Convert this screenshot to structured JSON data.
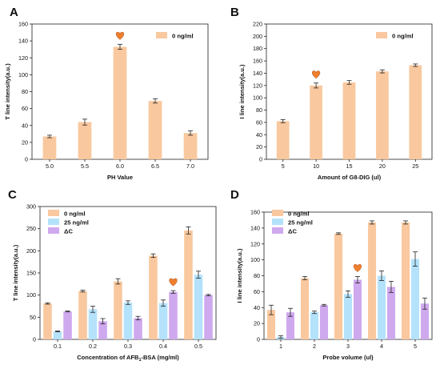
{
  "colors": {
    "zero": "#f9c89e",
    "c25": "#b4e2fa",
    "delta": "#cfa9ee",
    "heart": "#f07f2d",
    "err": "#222222"
  },
  "chart_data": [
    {
      "panel": "A",
      "type": "bar",
      "categories": [
        "5.0",
        "5.5",
        "6.0",
        "6.5",
        "7.0"
      ],
      "xlabel": "PH Value",
      "ylabel": "T line intensity(a.u.)",
      "ylim": [
        0,
        160
      ],
      "yticks": [
        0,
        20,
        40,
        60,
        80,
        100,
        120,
        140,
        160
      ],
      "series": [
        {
          "name": "0 ng/ml",
          "color_key": "zero",
          "values": [
            27,
            44,
            133,
            69,
            31
          ],
          "errors": [
            1.5,
            3.5,
            3,
            2.5,
            2.5
          ]
        }
      ],
      "marker": {
        "series": 0,
        "index": 2,
        "icon": "heart-icon"
      }
    },
    {
      "panel": "B",
      "type": "bar",
      "categories": [
        "5",
        "10",
        "15",
        "20",
        "25"
      ],
      "xlabel": "Amount of G8-DIG (ul)",
      "ylabel": "I line intensity(a.u.)",
      "ylim": [
        0,
        220
      ],
      "yticks": [
        0,
        20,
        40,
        60,
        80,
        100,
        120,
        140,
        160,
        180,
        200,
        220
      ],
      "series": [
        {
          "name": "0 ng/ml",
          "color_key": "zero",
          "values": [
            62,
            120,
            125,
            143,
            153
          ],
          "errors": [
            2.5,
            4,
            3,
            2.5,
            2
          ]
        }
      ],
      "marker": {
        "series": 0,
        "index": 1,
        "icon": "heart-icon"
      }
    },
    {
      "panel": "C",
      "type": "bar",
      "categories": [
        "0.1",
        "0.2",
        "0.3",
        "0.4",
        "0.5"
      ],
      "xlabel": "Concentration of AFB",
      "xlabel_sub": "1",
      "xlabel_tail": "-BSA (mg/ml)",
      "ylabel": "T line intensity(a.u.)",
      "ylim": [
        0,
        300
      ],
      "yticks": [
        0,
        50,
        100,
        150,
        200,
        250,
        300
      ],
      "series": [
        {
          "name": "0 ng/ml",
          "color_key": "zero",
          "values": [
            81,
            109,
            131,
            189,
            246
          ],
          "errors": [
            1.5,
            2,
            6,
            4,
            8
          ]
        },
        {
          "name": "25 ng/ml",
          "color_key": "c25",
          "values": [
            18,
            68,
            83,
            82,
            146
          ],
          "errors": [
            1,
            7,
            4,
            7,
            8
          ]
        },
        {
          "name": "ΔC",
          "color_key": "delta",
          "values": [
            63,
            41,
            48,
            107,
            100
          ],
          "errors": [
            1,
            6,
            4,
            3,
            1.5
          ]
        }
      ],
      "marker": {
        "series": 2,
        "index": 3,
        "icon": "heart-icon"
      }
    },
    {
      "panel": "D",
      "type": "bar",
      "categories": [
        "1",
        "2",
        "3",
        "4",
        "5"
      ],
      "xlabel": "Probe volume (ul)",
      "ylabel": "I line intensity(a.u.)",
      "ylim": [
        0,
        160
      ],
      "yticks": [
        0,
        20,
        40,
        60,
        80,
        100,
        120,
        140,
        160
      ],
      "series": [
        {
          "name": "0 ng/ml",
          "color_key": "zero",
          "values": [
            37,
            77,
            133,
            147,
            147
          ],
          "errors": [
            6,
            2,
            1,
            2,
            2
          ]
        },
        {
          "name": "25 ng/ml",
          "color_key": "c25",
          "values": [
            3,
            34,
            57,
            80,
            101
          ],
          "errors": [
            1.5,
            1.5,
            4,
            6,
            9
          ]
        },
        {
          "name": "ΔC",
          "color_key": "delta",
          "values": [
            34,
            43,
            75,
            66,
            45
          ],
          "errors": [
            5,
            1,
            4,
            7,
            7
          ]
        }
      ],
      "marker": {
        "series": 2,
        "index": 2,
        "icon": "heart-icon"
      }
    }
  ]
}
